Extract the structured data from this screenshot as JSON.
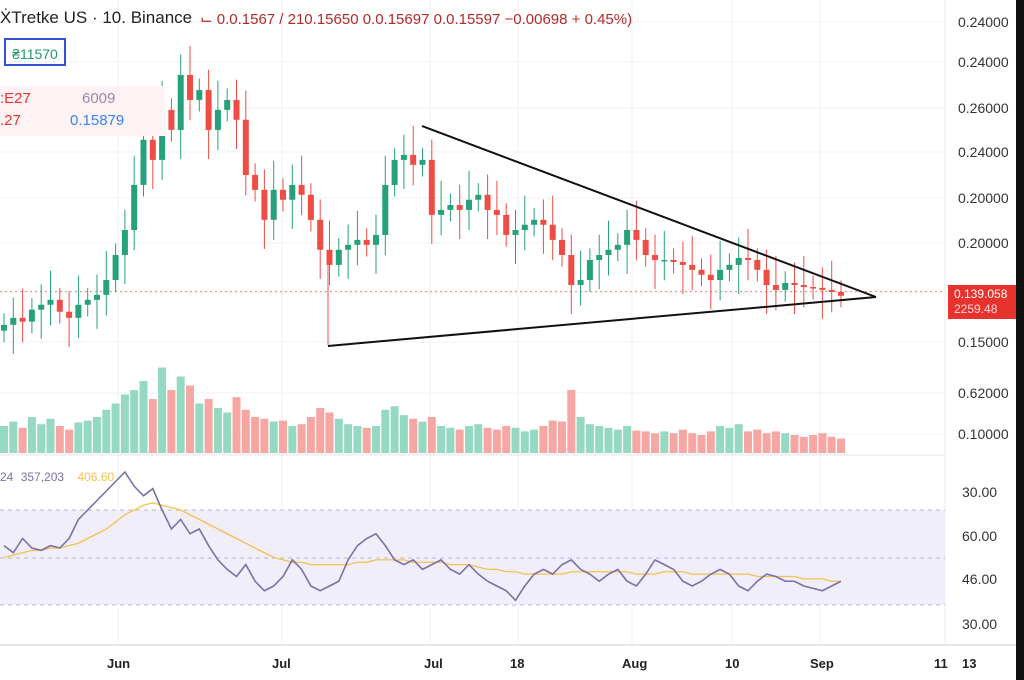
{
  "header": {
    "symbol": "ẊTretke US · 10. Binance",
    "ohlc": "⌙ 0.0.1567 / 210.15650  0.0.15697  0.0.15597  −0.00698 + 0.45%)"
  },
  "box_value": "₴11570",
  "legend": {
    "left_top": ":E27",
    "left_bottom": ".27",
    "value_a": "6009",
    "value_b": "0.15879"
  },
  "price_tag": {
    "price": "0.139.058",
    "sub": "2259.48"
  },
  "rsi_legend": {
    "a": "24",
    "b": "357,203",
    "c": "406.60"
  },
  "colors": {
    "up": "#26a17b",
    "down": "#ef4c45",
    "up_vol": "#96d9c3",
    "down_vol": "#f6a7a3",
    "rsi": "#7b6fa8",
    "rsi_ma": "#f2c24b",
    "band": "#f1eefb"
  },
  "chart_data": {
    "type": "candlestick",
    "price_axis_labels": [
      "0.24000",
      "0.24000",
      "0.26000",
      "0.24000",
      "0.20000",
      "0.20000",
      "0.15000",
      "0.62000",
      "0.10000"
    ],
    "rsi_axis_labels": [
      "30.00",
      "60.00",
      "46.00",
      "30.00"
    ],
    "x_labels": [
      "Jun",
      "Jul",
      "Jul",
      "18",
      "Aug",
      "10",
      "Sep",
      "11",
      "13"
    ],
    "ylim": [
      0.15,
      0.26
    ],
    "close": [
      0.1559,
      0.1583,
      0.157,
      0.1611,
      0.1628,
      0.1645,
      0.1604,
      0.1583,
      0.1628,
      0.1645,
      0.1662,
      0.1713,
      0.1799,
      0.1885,
      0.204,
      0.2195,
      0.2126,
      0.2298,
      0.2229,
      0.2418,
      0.2332,
      0.2366,
      0.2229,
      0.2298,
      0.2332,
      0.2264,
      0.2074,
      0.2023,
      0.192,
      0.2023,
      0.1989,
      0.204,
      0.2006,
      0.192,
      0.1817,
      0.1765,
      0.1817,
      0.1834,
      0.1851,
      0.1834,
      0.1868,
      0.204,
      0.2126,
      0.2143,
      0.2109,
      0.2126,
      0.1937,
      0.1954,
      0.1971,
      0.1954,
      0.1989,
      0.2006,
      0.1954,
      0.1937,
      0.1868,
      0.1885,
      0.1903,
      0.192,
      0.1903,
      0.1851,
      0.1799,
      0.1696,
      0.1713,
      0.1782,
      0.1799,
      0.1817,
      0.1834,
      0.1885,
      0.1851,
      0.1799,
      0.1782,
      0.1782,
      0.1775,
      0.1765,
      0.1748,
      0.1731,
      0.1713,
      0.1748,
      0.1765,
      0.1789,
      0.1782,
      0.1748,
      0.1696,
      0.1679,
      0.1703,
      0.1696,
      0.1689,
      0.1686,
      0.1679,
      0.1672,
      0.1659
    ],
    "volume": [
      30,
      35,
      28,
      40,
      32,
      38,
      30,
      26,
      34,
      36,
      40,
      48,
      55,
      65,
      70,
      80,
      60,
      95,
      70,
      85,
      75,
      55,
      60,
      50,
      45,
      62,
      48,
      40,
      38,
      35,
      36,
      30,
      32,
      40,
      50,
      45,
      38,
      32,
      30,
      28,
      30,
      48,
      52,
      42,
      38,
      35,
      40,
      30,
      28,
      26,
      30,
      32,
      28,
      26,
      30,
      28,
      24,
      26,
      30,
      36,
      35,
      70,
      40,
      32,
      30,
      28,
      26,
      30,
      25,
      24,
      22,
      24,
      22,
      26,
      22,
      20,
      24,
      30,
      28,
      32,
      24,
      26,
      22,
      24,
      22,
      20,
      18,
      20,
      22,
      18,
      16
    ],
    "rsi": [
      55,
      52,
      58,
      54,
      53,
      55,
      54,
      58,
      66,
      70,
      74,
      78,
      82,
      86,
      80,
      76,
      79,
      70,
      62,
      66,
      60,
      62,
      55,
      49,
      45,
      42,
      47,
      40,
      36,
      38,
      42,
      49,
      45,
      38,
      36,
      38,
      40,
      49,
      55,
      58,
      60,
      55,
      49,
      47,
      49,
      45,
      47,
      49,
      45,
      43,
      47,
      43,
      40,
      38,
      36,
      32,
      38,
      43,
      45,
      43,
      47,
      49,
      45,
      43,
      40,
      43,
      45,
      40,
      38,
      43,
      49,
      47,
      45,
      40,
      38,
      40,
      43,
      45,
      43,
      38,
      36,
      40,
      43,
      42,
      40,
      40,
      38,
      37,
      36,
      38,
      40
    ],
    "rsi_ma": [
      50,
      51,
      52,
      53,
      53,
      54,
      54,
      55,
      56,
      58,
      60,
      62,
      65,
      68,
      70,
      72,
      73,
      72,
      71,
      70,
      68,
      66,
      64,
      62,
      60,
      58,
      56,
      54,
      52,
      50,
      49,
      48,
      48,
      47,
      47,
      47,
      47,
      47,
      48,
      48,
      49,
      49,
      49,
      49,
      48,
      48,
      48,
      48,
      47,
      47,
      47,
      46,
      45,
      45,
      44,
      44,
      43,
      43,
      43,
      43,
      43,
      44,
      44,
      44,
      44,
      44,
      44,
      44,
      43,
      43,
      43,
      44,
      44,
      44,
      43,
      43,
      43,
      43,
      43,
      43,
      43,
      42,
      42,
      42,
      42,
      42,
      41,
      41,
      41,
      40,
      40
    ],
    "trendlines": "symmetrical triangle"
  }
}
